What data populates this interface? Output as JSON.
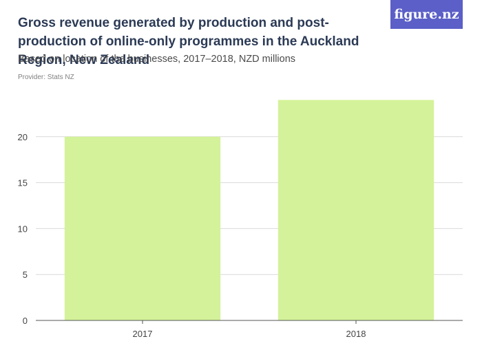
{
  "title": "Gross revenue generated by production and post-production of online-only programmes in the Auckland Region, New Zealand",
  "subtitle": "Based on location of the businesses, 2017–2018, NZD millions",
  "provider": "Provider: Stats NZ",
  "logo": "figure.nz",
  "colors": {
    "bar": "#d4f29a",
    "grid": "#d9d9d9",
    "axis": "#555555",
    "tick_text": "#444444",
    "logo_bg": "#5b5fc7"
  },
  "chart_data": {
    "type": "bar",
    "categories": [
      "2017",
      "2018"
    ],
    "values": [
      20,
      24
    ],
    "ylim": [
      0,
      25
    ],
    "yticks": [
      0,
      5,
      10,
      15,
      20
    ],
    "grid": true,
    "xlabel": "",
    "ylabel": ""
  }
}
